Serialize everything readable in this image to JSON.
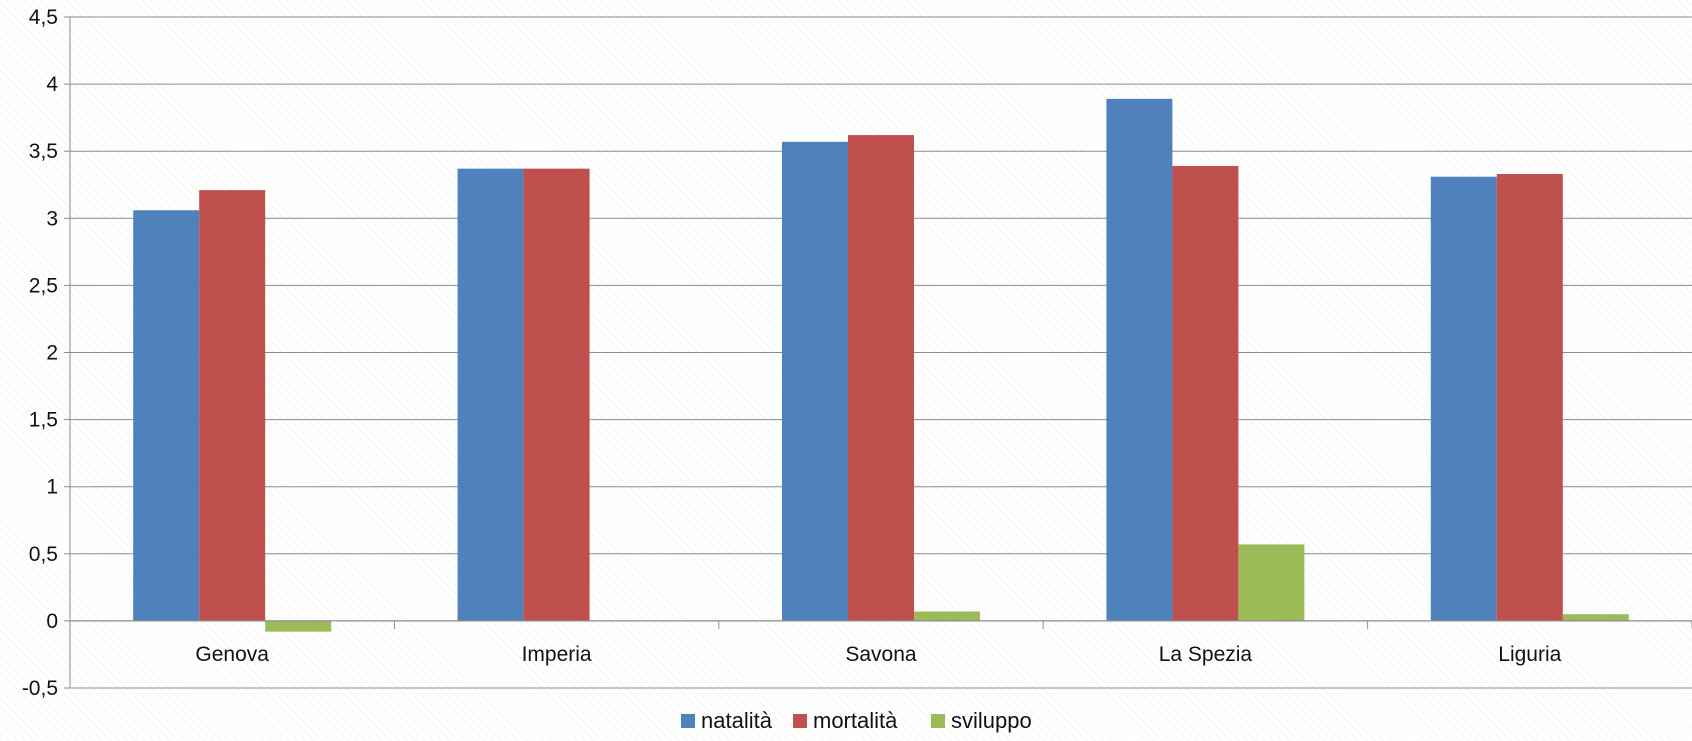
{
  "chart_data": {
    "type": "bar",
    "title": "",
    "xlabel": "",
    "ylabel": "",
    "categories": [
      "Genova",
      "Imperia",
      "Savona",
      "La Spezia",
      "Liguria"
    ],
    "series": [
      {
        "name": "natalità",
        "color": "#4f81bd",
        "values": [
          3.06,
          3.37,
          3.57,
          3.89,
          3.31
        ]
      },
      {
        "name": "mortalità",
        "color": "#c0504d",
        "values": [
          3.21,
          3.37,
          3.62,
          3.39,
          3.33
        ]
      },
      {
        "name": "sviluppo",
        "color": "#9bbb59",
        "values": [
          -0.08,
          0.0,
          0.07,
          0.57,
          0.05
        ]
      }
    ],
    "ylim": [
      -0.5,
      4.5
    ],
    "yticks": [
      "-0,5",
      "0",
      "0,5",
      "1",
      "1,5",
      "2",
      "2,5",
      "3",
      "3,5",
      "4",
      "4,5"
    ],
    "grid": true,
    "legend": "bottom"
  }
}
